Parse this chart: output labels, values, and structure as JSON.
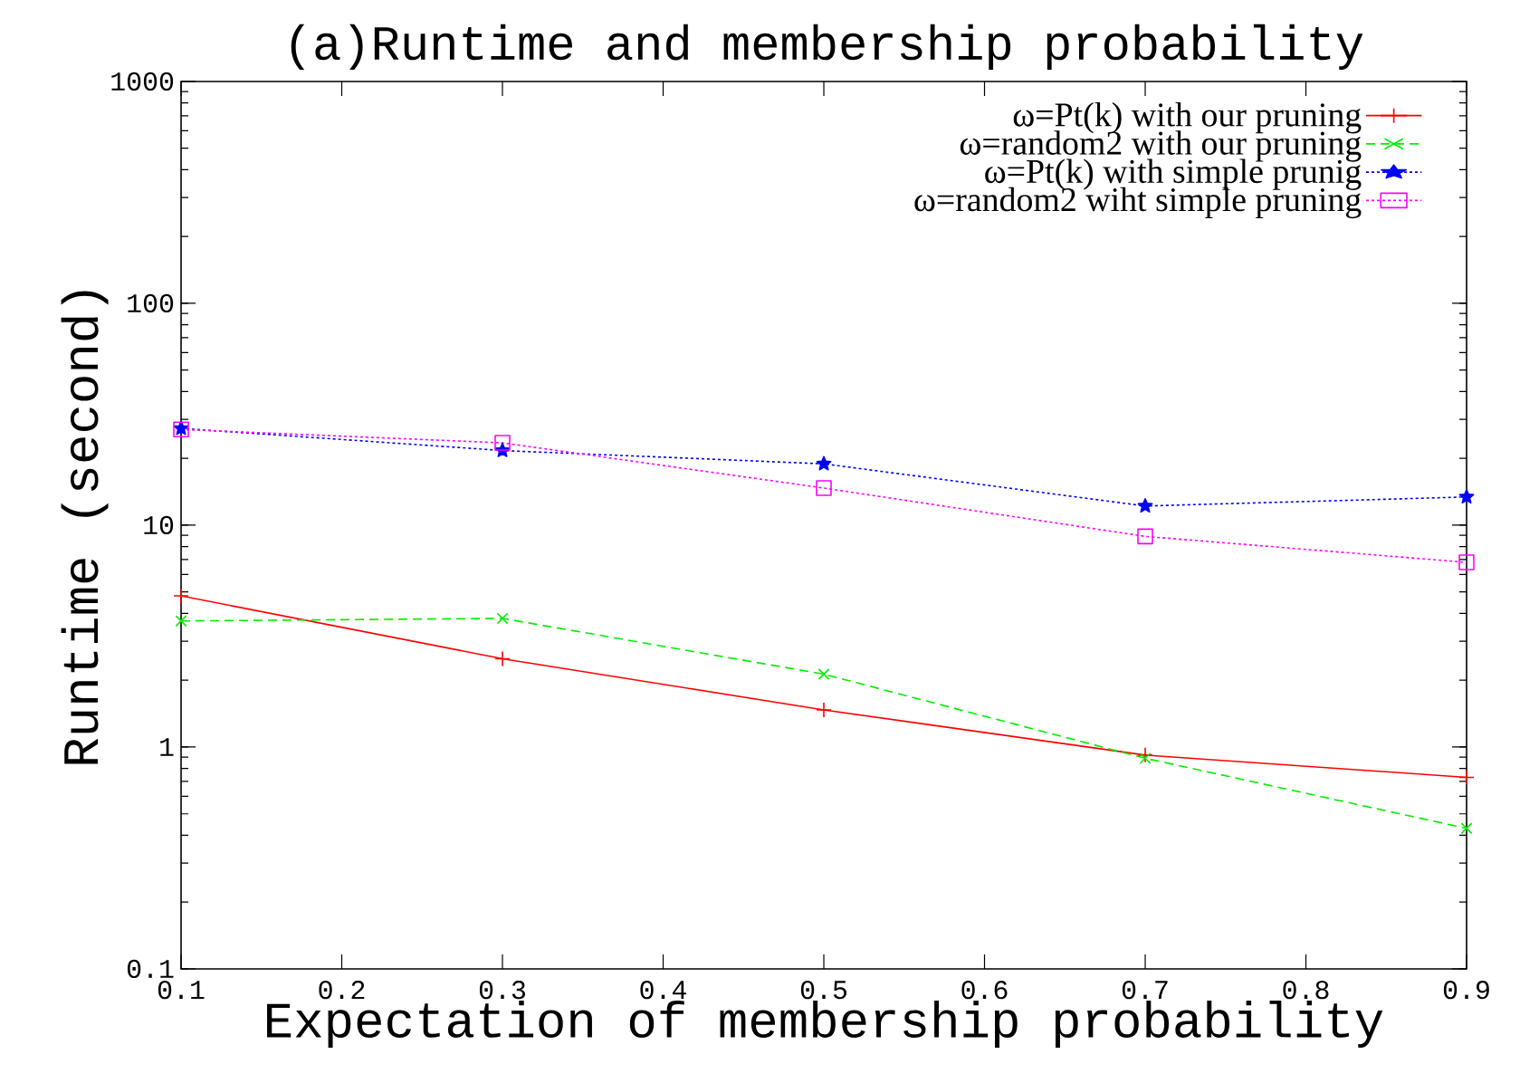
{
  "chart_data": {
    "type": "line",
    "title": "(a)Runtime and membership probability",
    "xlabel": "Expectation of membership probability",
    "ylabel": "Runtime (second)",
    "x": [
      0.1,
      0.3,
      0.5,
      0.7,
      0.9
    ],
    "series": [
      {
        "name": "ω=Pt(k) with our pruning",
        "color": "#ff0000",
        "line_style": "solid",
        "marker": "plus",
        "values": [
          4.8,
          2.5,
          1.47,
          0.92,
          0.73
        ]
      },
      {
        "name": "ω=random2 with our pruning",
        "color": "#00ee00",
        "line_style": "dashed",
        "marker": "cross",
        "values": [
          3.7,
          3.8,
          2.13,
          0.89,
          0.43
        ]
      },
      {
        "name": "ω=Pt(k) with simple prunig",
        "color": "#0000ff",
        "line_style": "dotted",
        "marker": "star",
        "values": [
          27.3,
          21.7,
          18.9,
          12.2,
          13.4
        ]
      },
      {
        "name": "ω=random2 wiht simple pruning",
        "color": "#ff00ff",
        "line_style": "dotted",
        "marker": "square",
        "values": [
          27,
          23.5,
          14.7,
          8.9,
          6.8
        ]
      }
    ],
    "log": "y",
    "xlim": [
      0.1,
      0.9
    ],
    "ylim": [
      0.1,
      1000
    ],
    "xticks": [
      0.1,
      0.2,
      0.3,
      0.4,
      0.5,
      0.6,
      0.7,
      0.8,
      0.9
    ],
    "yticks": [
      0.1,
      1,
      10,
      100,
      1000
    ],
    "grid": false,
    "legend": "top right"
  }
}
